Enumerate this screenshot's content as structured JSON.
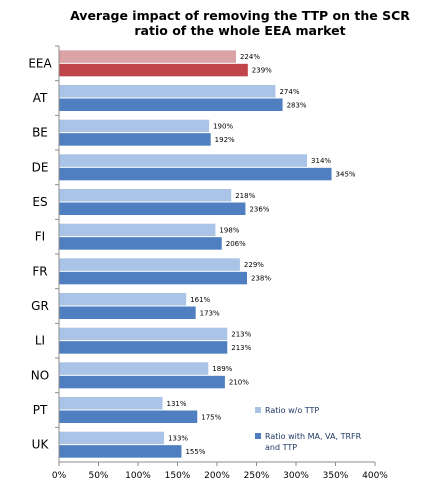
{
  "chart_data": {
    "type": "bar",
    "orientation": "horizontal",
    "title": "Average impact of removing the TTP on the SCR ratio of the whole EEA market",
    "title_lines": [
      "Average impact of removing the TTP on the SCR",
      "ratio of the whole EEA market"
    ],
    "categories": [
      "EEA",
      "AT",
      "BE",
      "DE",
      "ES",
      "FI",
      "FR",
      "GR",
      "LI",
      "NO",
      "PT",
      "UK"
    ],
    "series": [
      {
        "name": "Ratio w/o TTP",
        "color": "#a9c4e6",
        "highlight_color": "#dba3a6",
        "values": [
          224,
          274,
          190,
          314,
          218,
          198,
          229,
          161,
          213,
          189,
          131,
          133
        ],
        "labels": [
          "224%",
          "274%",
          "190%",
          "314%",
          "218%",
          "198%",
          "229%",
          "161%",
          "213%",
          "189%",
          "131%",
          "133%"
        ]
      },
      {
        "name": "Ratio with MA, VA, TRFR and TTP",
        "name_lines": [
          "Ratio with MA, VA, TRFR",
          "and TTP"
        ],
        "color": "#4f7fc1",
        "highlight_color": "#c0454a",
        "values": [
          239,
          283,
          192,
          345,
          236,
          206,
          238,
          173,
          213,
          210,
          175,
          155
        ],
        "labels": [
          "239%",
          "283%",
          "192%",
          "345%",
          "236%",
          "206%",
          "238%",
          "173%",
          "213%",
          "210%",
          "175%",
          "155%"
        ]
      }
    ],
    "highlight_category": "EEA",
    "xlim": [
      0,
      400
    ],
    "xticks": [
      0,
      50,
      100,
      150,
      200,
      250,
      300,
      350,
      400
    ],
    "xtick_labels": [
      "0%",
      "50%",
      "100%",
      "150%",
      "200%",
      "250%",
      "300%",
      "350%",
      "400%"
    ],
    "grid": false,
    "legend_position": "lower-right"
  }
}
